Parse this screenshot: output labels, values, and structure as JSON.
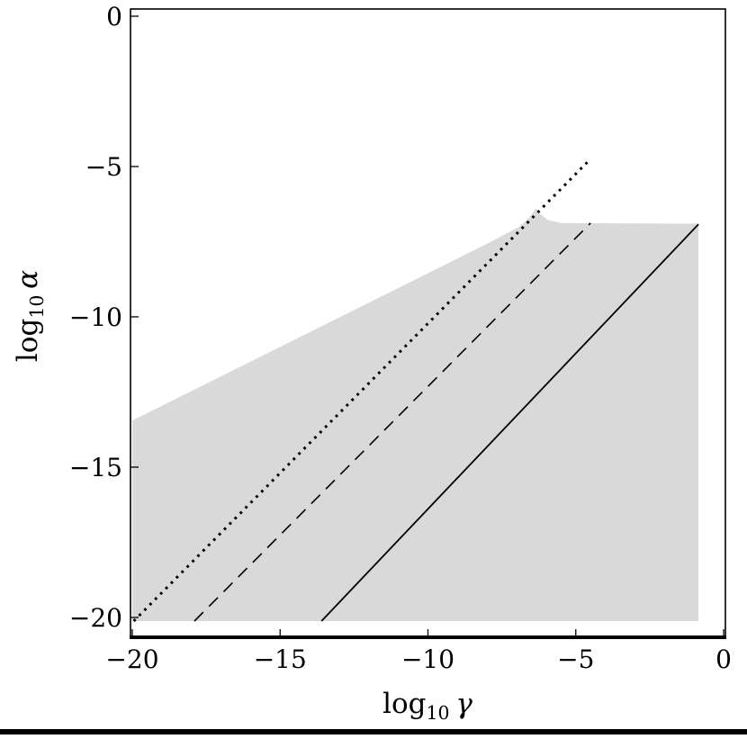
{
  "page": {
    "background": "#ffffff",
    "rule_color": "#000000"
  },
  "chart_data": {
    "type": "area",
    "title": "",
    "xlabel": {
      "func": "log",
      "sub": "10",
      "var": "γ"
    },
    "ylabel": {
      "func": "log",
      "sub": "10",
      "var": "α"
    },
    "x_range": [
      -20.06,
      0.06
    ],
    "y_range": [
      -20.66,
      0.24
    ],
    "grid": false,
    "legend": false,
    "frame_color": "#000000",
    "x_ticks": [
      {
        "v": -20,
        "label": "−20"
      },
      {
        "v": -15,
        "label": "−15"
      },
      {
        "v": -10,
        "label": "−10"
      },
      {
        "v": -5,
        "label": "−5"
      },
      {
        "v": 0,
        "label": "0"
      }
    ],
    "y_ticks": [
      {
        "v": 0,
        "label": "0"
      },
      {
        "v": -5,
        "label": "−5"
      },
      {
        "v": -10,
        "label": "−10"
      },
      {
        "v": -15,
        "label": "−15"
      },
      {
        "v": -20,
        "label": "−20"
      }
    ],
    "region": {
      "name": "shaded-allowed-region",
      "fill": "#d9d9d9",
      "points": [
        [
          -20,
          -20.12
        ],
        [
          -20,
          -13.45
        ],
        [
          -8,
          -7.57
        ],
        [
          -6.9,
          -7.0
        ],
        [
          -6.55,
          -6.68
        ],
        [
          -6.35,
          -6.38
        ],
        [
          -6.18,
          -6.6
        ],
        [
          -5.95,
          -6.78
        ],
        [
          -5.5,
          -6.88
        ],
        [
          -0.85,
          -6.9
        ],
        [
          -0.85,
          -20.12
        ]
      ]
    },
    "lines": [
      {
        "name": "dotted-line",
        "style": "dotted",
        "color": "#000000",
        "width": 3,
        "dash": "2.8 5.6",
        "points": [
          [
            -19.95,
            -20.12
          ],
          [
            -4.55,
            -4.8
          ]
        ]
      },
      {
        "name": "dashed-line",
        "style": "dashed",
        "color": "#000000",
        "width": 1.6,
        "dash": "14 9",
        "points": [
          [
            -17.9,
            -20.12
          ],
          [
            -4.5,
            -6.88
          ]
        ]
      },
      {
        "name": "solid-line",
        "style": "solid",
        "color": "#000000",
        "width": 1.8,
        "points": [
          [
            -13.6,
            -20.12
          ],
          [
            -0.85,
            -6.92
          ]
        ]
      }
    ]
  }
}
